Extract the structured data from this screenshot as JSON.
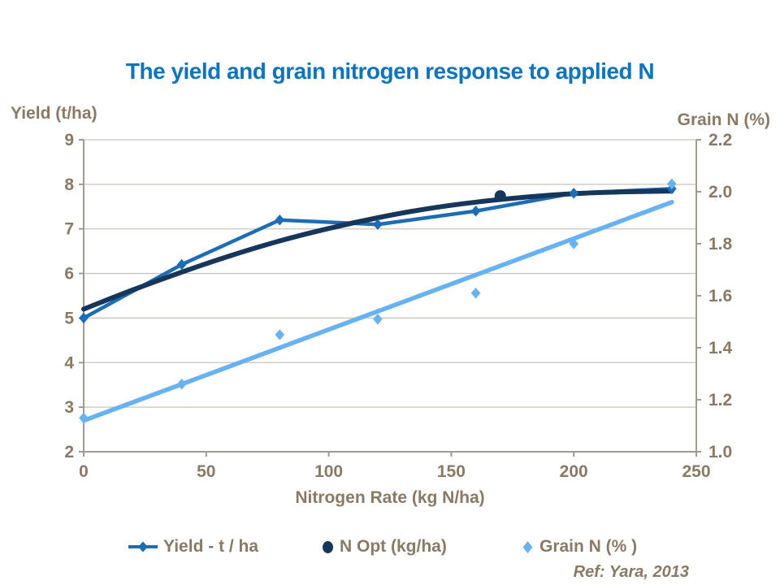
{
  "slide": {
    "title": "The yield and grain nitrogen response to applied N",
    "ref_note": "Ref: Yara, 2013"
  },
  "axes": {
    "left": {
      "title": "Yield (t/ha)",
      "ticks": [
        "9",
        "8",
        "7",
        "6",
        "5",
        "4",
        "3",
        "2"
      ],
      "range": [
        2,
        9
      ]
    },
    "right": {
      "title": "Grain N (%)",
      "ticks": [
        "2.2",
        "2.0",
        "1.8",
        "1.6",
        "1.4",
        "1.2",
        "1.0"
      ],
      "range": [
        1.0,
        2.2
      ]
    },
    "x": {
      "title": "Nitrogen Rate (kg N/ha)",
      "ticks": [
        "0",
        "50",
        "100",
        "150",
        "200",
        "250"
      ],
      "range": [
        0,
        250
      ]
    }
  },
  "legend": [
    {
      "label": "Yield - t / ha",
      "marker": "line-diamond",
      "color": "#1c6db6"
    },
    {
      "label": "N Opt (kg/ha)",
      "marker": "circle",
      "color": "#16365c"
    },
    {
      "label": "Grain N (% )",
      "marker": "diamond",
      "color": "#69b2f2"
    }
  ],
  "colors": {
    "title_blue": "#0d74bd",
    "label_brown": "#8a7964",
    "yield_blue": "#1c6db6",
    "navy": "#16365c",
    "grain_light_blue": "#69b2f2",
    "gridline": "#ccc5ba",
    "axis_frame": "#a19a90"
  },
  "chart_data": {
    "type": "line",
    "title": "The yield and grain nitrogen response to applied N",
    "xlabel": "Nitrogen Rate (kg N/ha)",
    "ylabel_left": "Yield (t/ha)",
    "ylabel_right": "Grain N (%)",
    "xlim": [
      0,
      250
    ],
    "ylim_left": [
      2,
      9
    ],
    "ylim_right": [
      1.0,
      2.2
    ],
    "grid": "horizontal-only",
    "legend_position": "bottom",
    "x": [
      0,
      40,
      80,
      120,
      160,
      200,
      240
    ],
    "series": [
      {
        "name": "Grain N trend line",
        "axis": "right",
        "draw": "line",
        "marker": "none",
        "color": "#69b2f2",
        "width": 5.5,
        "x": [
          0,
          240
        ],
        "values": [
          1.12,
          1.96
        ]
      },
      {
        "name": "Yield - t / ha",
        "axis": "left",
        "draw": "line",
        "marker": "diamond",
        "color": "#1c6db6",
        "width": 4.5,
        "values": [
          5.0,
          6.2,
          7.2,
          7.1,
          7.4,
          7.8,
          7.9
        ]
      },
      {
        "name": "Yield response curve (fitted)",
        "axis": "left",
        "draw": "smooth",
        "marker": "none",
        "color": "#16365c",
        "width": 6,
        "x": [
          0,
          20,
          40,
          60,
          80,
          100,
          120,
          140,
          160,
          180,
          200,
          220,
          240
        ],
        "values": [
          5.2,
          5.63,
          6.03,
          6.4,
          6.73,
          7.01,
          7.25,
          7.45,
          7.6,
          7.71,
          7.79,
          7.83,
          7.85
        ]
      },
      {
        "name": "N Opt (kg/ha)",
        "axis": "left",
        "draw": "point",
        "marker": "circle",
        "color": "#16365c",
        "width": 0,
        "x": [
          170
        ],
        "values": [
          7.74
        ]
      },
      {
        "name": "Grain N (% )",
        "axis": "right",
        "draw": "markers-only",
        "marker": "diamond",
        "color": "#69b2f2",
        "width": 0,
        "values": [
          1.13,
          1.26,
          1.45,
          1.51,
          1.61,
          1.8,
          2.03
        ]
      }
    ]
  }
}
